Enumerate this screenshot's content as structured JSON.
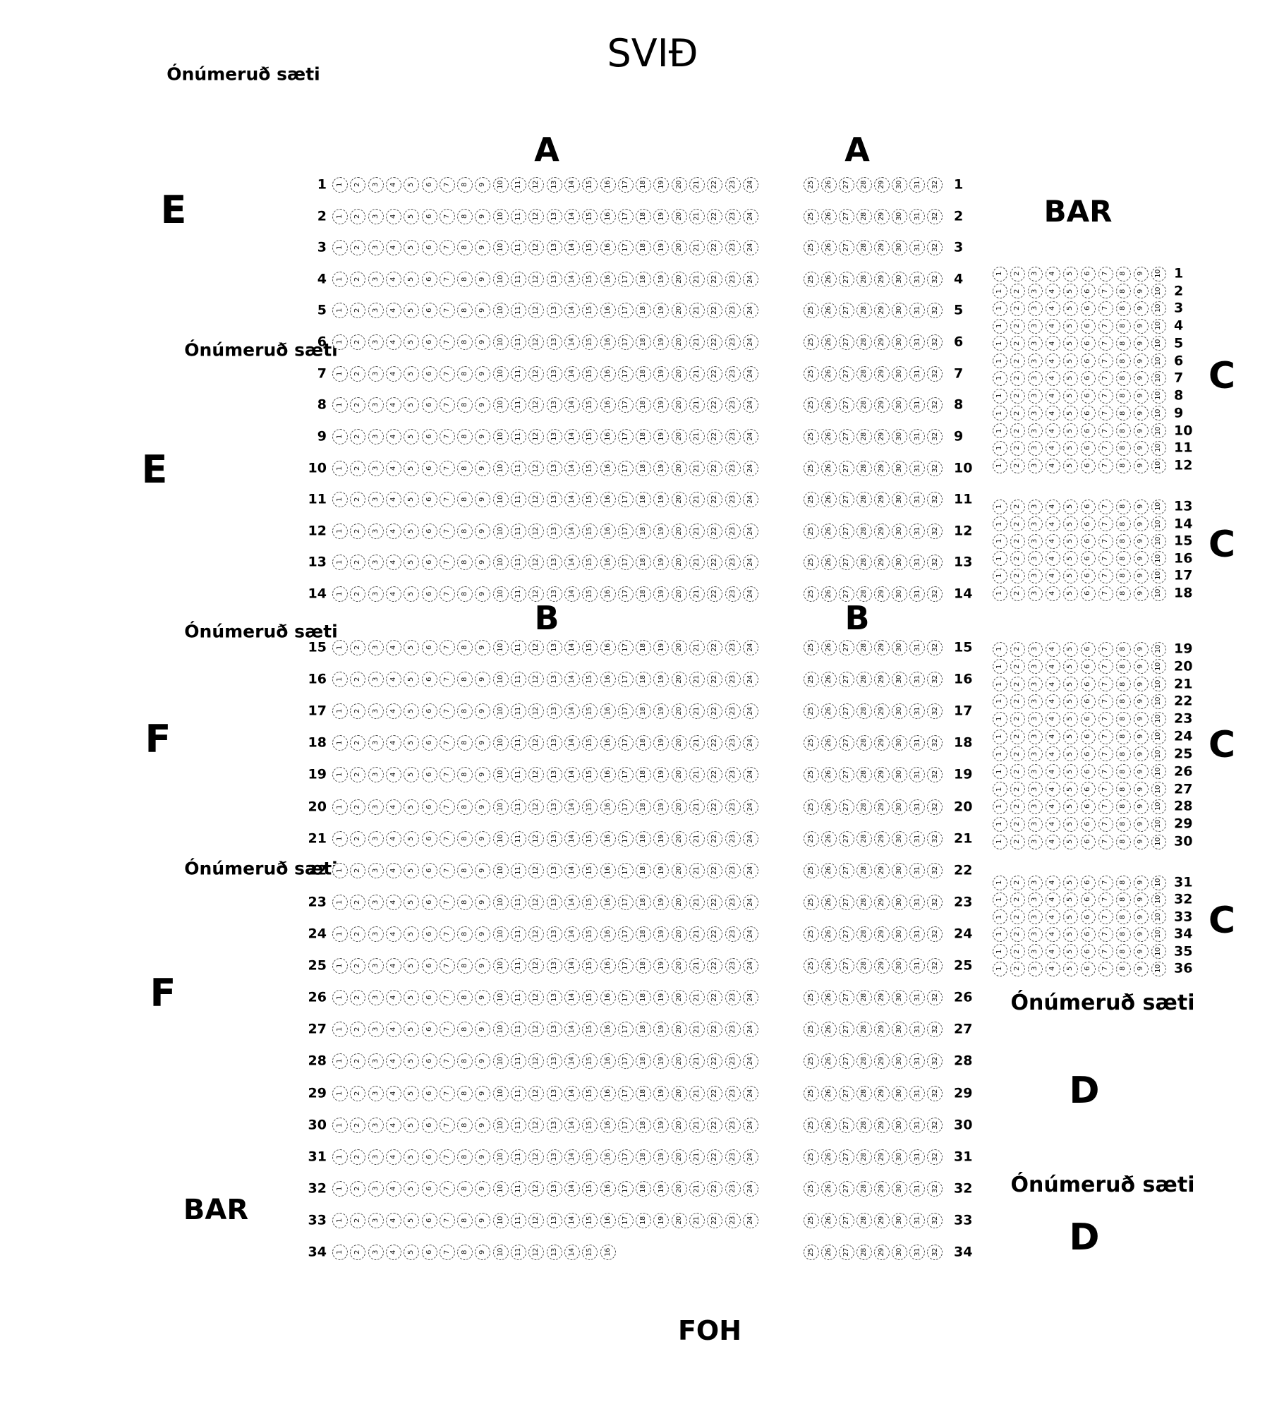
{
  "labels": {
    "stage": "SVIÐ",
    "foh": "FOH",
    "bar": "BAR",
    "unnumbered": "Ónúmeruð sæti",
    "sections": {
      "a": "A",
      "b": "B",
      "c": "C",
      "d": "D",
      "e": "E",
      "f": "F"
    }
  },
  "seat_map": {
    "main_block": {
      "rows": {
        "from": 1,
        "to": 34
      },
      "section_a_rows": {
        "from": 1,
        "to": 14
      },
      "section_b_rows": {
        "from": 15,
        "to": 34
      },
      "left_seats": {
        "from": 1,
        "to": 24
      },
      "left_seats_last_row": {
        "from": 1,
        "to": 16
      },
      "right_seats": {
        "from": 25,
        "to": 32
      }
    },
    "c_block": {
      "groups": [
        {
          "rows_from": 1,
          "rows_to": 12
        },
        {
          "rows_from": 13,
          "rows_to": 18
        },
        {
          "rows_from": 19,
          "rows_to": 30
        },
        {
          "rows_from": 31,
          "rows_to": 36
        }
      ],
      "seats": {
        "from": 1,
        "to": 10
      }
    }
  }
}
